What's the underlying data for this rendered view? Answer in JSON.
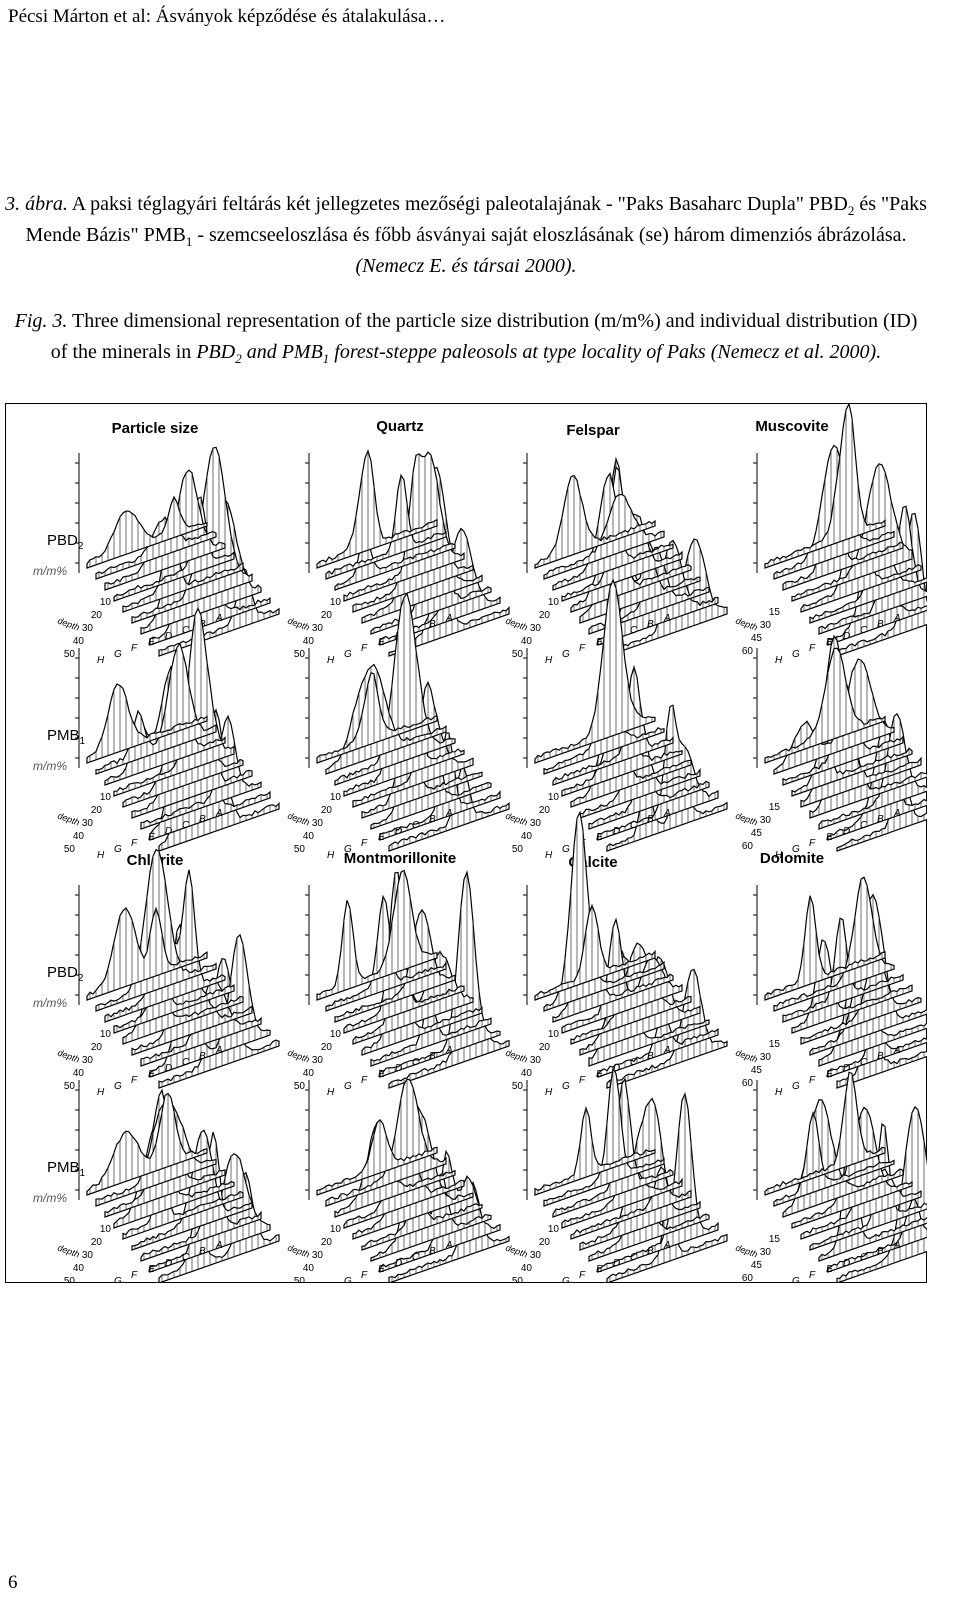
{
  "header": "Pécsi Márton et al: Ásványok képződése és átalakulása…",
  "caption_hu": {
    "parts": [
      "3. ábra.",
      " A paksi téglagyári feltárás két jellegzetes mezőségi paleotalajának - \"Paks Basaharc Dupla\" PBD",
      "2",
      " és \"Paks Mende Bázis\" PMB",
      "1",
      " - szemcseeloszlása és főbb ásványai saját eloszlásának (se) három dimenziós ábrázolása.",
      " (Nemecz E. és társai 2000)."
    ]
  },
  "caption_en": {
    "parts": [
      "Fig. 3.",
      " Three dimensional representation of the particle size distribution (m/m%) and individual distribution (ID) of the minerals in ",
      "PBD",
      "2",
      " and PMB",
      "1",
      " forest-steppe paleosols at type locality of Paks (Nemecz et al. 2000)."
    ]
  },
  "figure": {
    "groups": [
      {
        "titles": [
          "Particle size",
          "Quartz",
          "Felspar",
          "Muscovite"
        ],
        "rows": [
          {
            "label": "PBD",
            "sub": "2",
            "unit": "m/m%"
          },
          {
            "label": "PMB",
            "sub": "1",
            "unit": "m/m%"
          }
        ]
      },
      {
        "titles": [
          "Chlorite",
          "Montmorillonite",
          "Calcite",
          "Dolomite"
        ],
        "rows": [
          {
            "label": "PBD",
            "sub": "2",
            "unit": "m/m%"
          },
          {
            "label": "PMB",
            "sub": "1",
            "unit": "m/m%"
          }
        ]
      }
    ],
    "depth_label": "depth",
    "letters": [
      "H",
      "G",
      "F",
      "E",
      "D",
      "C",
      "B",
      "A"
    ],
    "depth_ticks": [
      [
        10,
        20,
        30,
        40,
        50
      ],
      [
        10,
        20,
        30,
        40,
        50
      ],
      [
        10,
        20,
        30,
        40,
        50
      ],
      [
        15,
        30,
        45,
        60
      ]
    ]
  },
  "page_number": "6"
}
